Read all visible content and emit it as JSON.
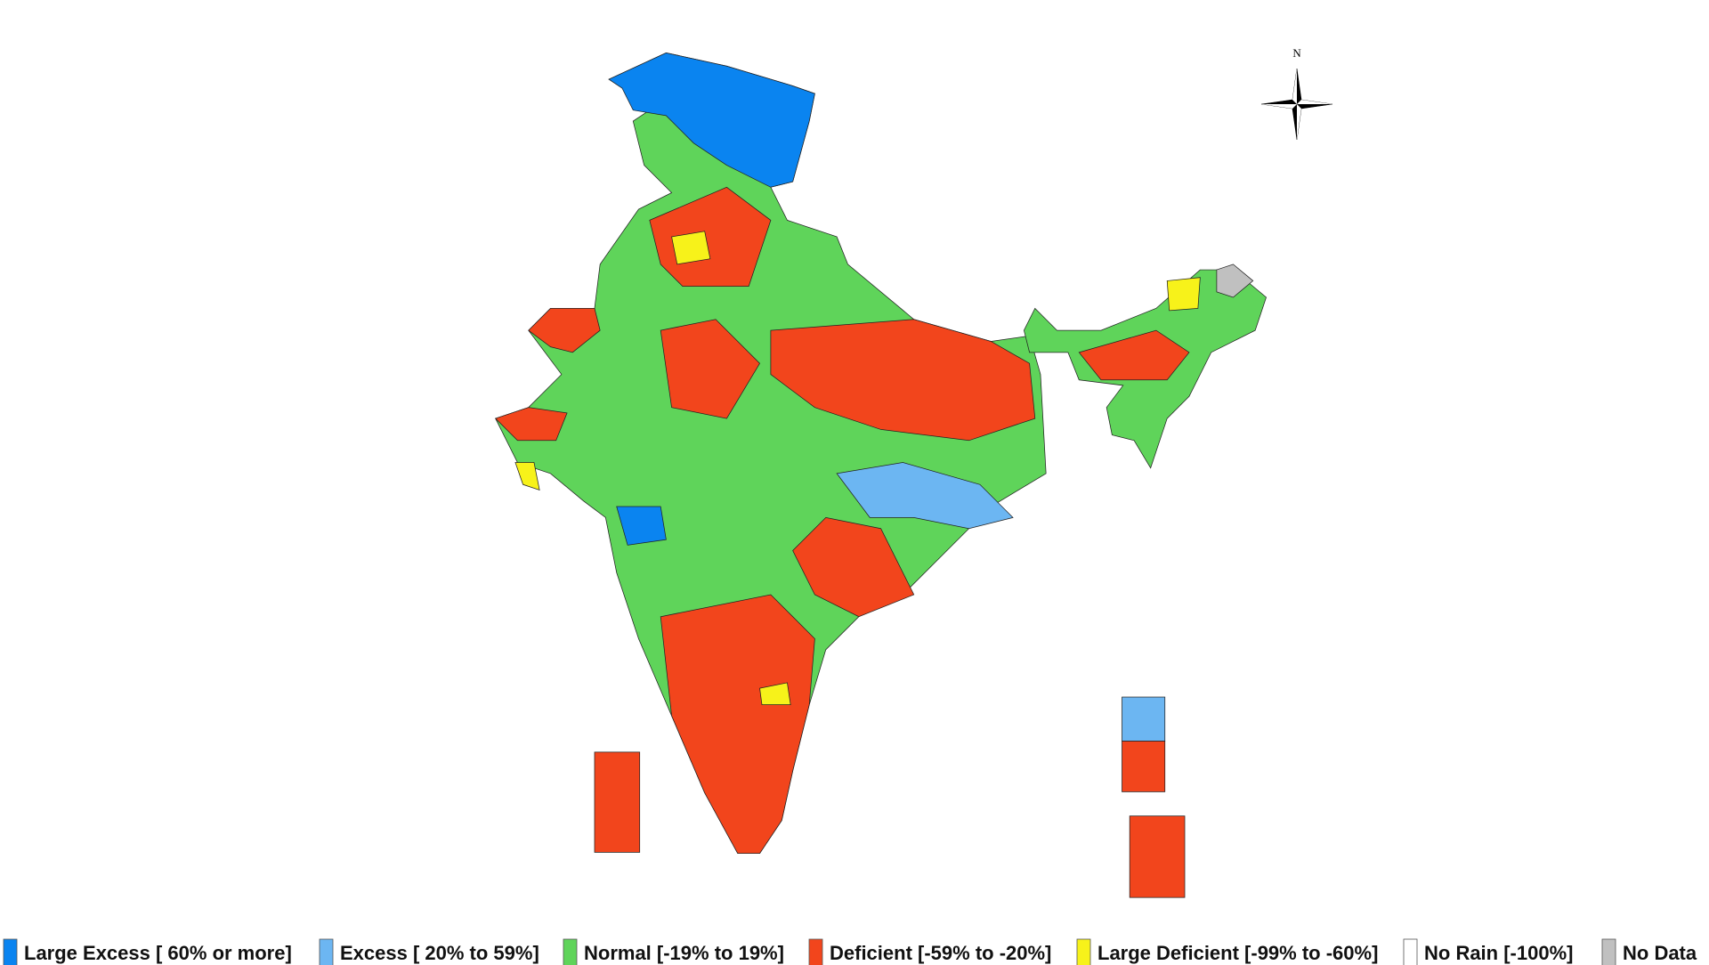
{
  "compass": {
    "label": "N"
  },
  "legend": [
    {
      "label": "Large Excess [ 60% or more]",
      "color": "#0a84f0"
    },
    {
      "label": "Excess [ 20% to 59%]",
      "color": "#6cb6f2"
    },
    {
      "label": "Normal [-19% to 19%]",
      "color": "#5fd45a"
    },
    {
      "label": "Deficient [-59% to -20%]",
      "color": "#f2451c"
    },
    {
      "label": "Large Deficient [-99% to -60%]",
      "color": "#f7f21a"
    },
    {
      "label": "No Rain  [-100%]",
      "color": "#ffffff"
    },
    {
      "label": "No Data",
      "color": "#c0c0c0"
    }
  ]
}
